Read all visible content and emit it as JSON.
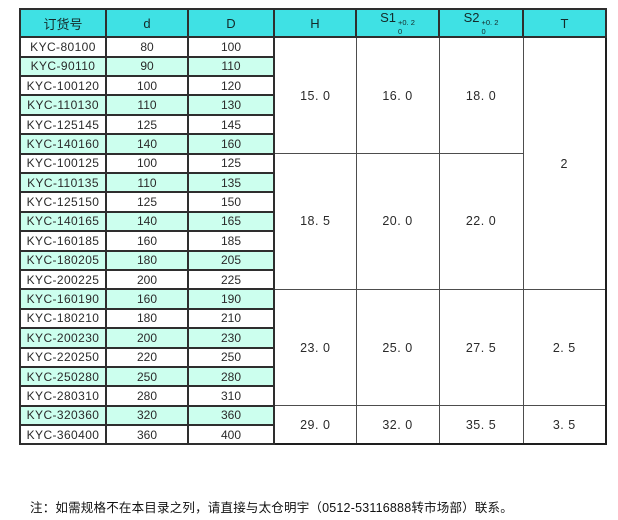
{
  "colors": {
    "header_bg": "#3FE1E4",
    "row_alt_bg": "#CCFFEE",
    "border_dark": "#2E2E2E",
    "border_light": "#4D4D4D",
    "text": "#1A1A1A"
  },
  "table": {
    "headers": {
      "order_no": "订货号",
      "d_col": "d",
      "D_col": "D",
      "h_col": "H",
      "s1_col": "S1",
      "s2_col": "S2",
      "t_col": "T"
    },
    "tolerance": {
      "sup": "+0. 2",
      "sub": "0"
    },
    "groups": [
      {
        "h": "15. 0",
        "s1": "16. 0",
        "s2": "18. 0",
        "rows": [
          {
            "code": "KYC-80100",
            "d": "80",
            "D": "100"
          },
          {
            "code": "KYC-90110",
            "d": "90",
            "D": "110"
          },
          {
            "code": "KYC-100120",
            "d": "100",
            "D": "120"
          },
          {
            "code": "KYC-110130",
            "d": "110",
            "D": "130"
          },
          {
            "code": "KYC-125145",
            "d": "125",
            "D": "145"
          },
          {
            "code": "KYC-140160",
            "d": "140",
            "D": "160"
          }
        ]
      },
      {
        "h": "18. 5",
        "s1": "20. 0",
        "s2": "22. 0",
        "rows": [
          {
            "code": "KYC-100125",
            "d": "100",
            "D": "125"
          },
          {
            "code": "KYC-110135",
            "d": "110",
            "D": "135"
          },
          {
            "code": "KYC-125150",
            "d": "125",
            "D": "150"
          },
          {
            "code": "KYC-140165",
            "d": "140",
            "D": "165"
          },
          {
            "code": "KYC-160185",
            "d": "160",
            "D": "185"
          },
          {
            "code": "KYC-180205",
            "d": "180",
            "D": "205"
          },
          {
            "code": "KYC-200225",
            "d": "200",
            "D": "225"
          }
        ]
      },
      {
        "h": "23. 0",
        "s1": "25. 0",
        "s2": "27. 5",
        "rows": [
          {
            "code": "KYC-160190",
            "d": "160",
            "D": "190"
          },
          {
            "code": "KYC-180210",
            "d": "180",
            "D": "210"
          },
          {
            "code": "KYC-200230",
            "d": "200",
            "D": "230"
          },
          {
            "code": "KYC-220250",
            "d": "220",
            "D": "250"
          },
          {
            "code": "KYC-250280",
            "d": "250",
            "D": "280"
          },
          {
            "code": "KYC-280310",
            "d": "280",
            "D": "310"
          }
        ]
      },
      {
        "h": "29. 0",
        "s1": "32. 0",
        "s2": "35. 5",
        "rows": [
          {
            "code": "KYC-320360",
            "d": "320",
            "D": "360"
          },
          {
            "code": "KYC-360400",
            "d": "360",
            "D": "400"
          }
        ]
      }
    ],
    "t_values": [
      {
        "label": "2",
        "groups": [
          0,
          1
        ]
      },
      {
        "label": "2. 5",
        "groups": [
          2
        ]
      },
      {
        "label": "3. 5",
        "groups": [
          3
        ]
      }
    ]
  },
  "note": "注：如需规格不在本目录之列，请直接与太仓明宇（0512-53116888转市场部）联系。"
}
